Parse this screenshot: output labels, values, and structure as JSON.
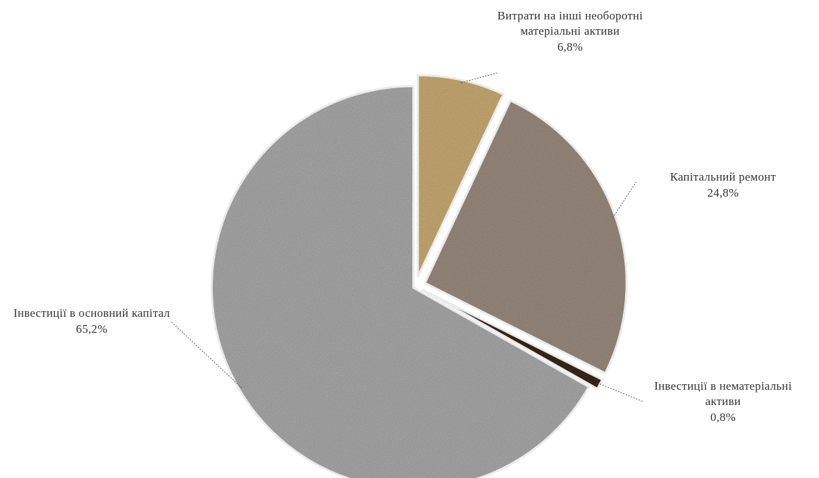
{
  "chart_data": {
    "type": "pie",
    "slices": [
      {
        "label": "Витрати на інші необоротні матеріальні активи",
        "value": 6.8,
        "value_label": "6,8%",
        "color": "#c8aa73"
      },
      {
        "label": "Капітальний ремонт",
        "value": 24.8,
        "value_label": "24,8%",
        "color": "#9a8a7e"
      },
      {
        "label": "Інвестиції в нематеріальні активи",
        "value": 0.8,
        "value_label": "0,8%",
        "color": "#3b2a1c"
      },
      {
        "label": "Інвестиції в основний капітал",
        "value": 65.2,
        "value_label": "65,2%",
        "color": "#a9a9a9"
      }
    ],
    "start": "12 o'clock",
    "direction": "clockwise",
    "exploded": true,
    "legend": "none",
    "title": ""
  }
}
